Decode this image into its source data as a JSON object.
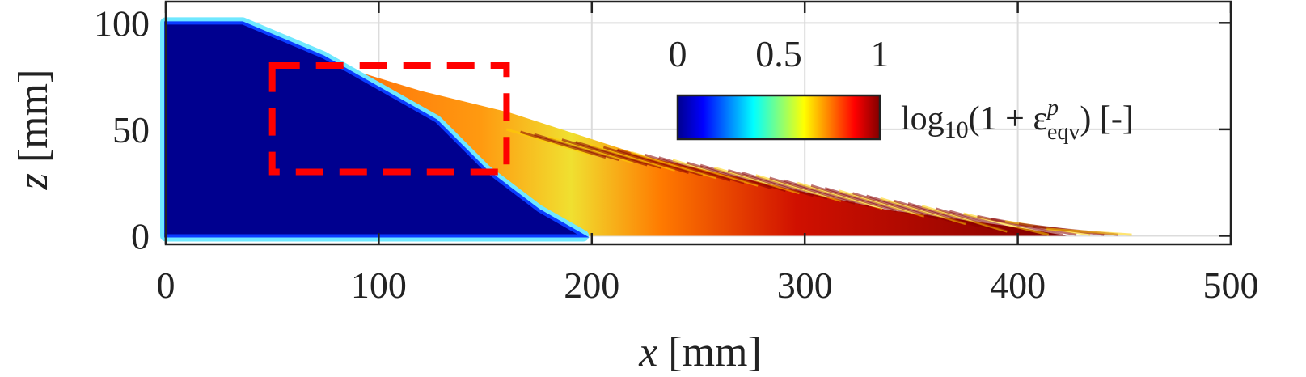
{
  "chart_data": {
    "type": "heatmap",
    "xlabel": "x [mm]",
    "xlabel_var": "x",
    "xlabel_unit": "[mm]",
    "ylabel": "z [mm]",
    "ylabel_var": "z",
    "ylabel_unit": "[mm]",
    "xlim": [
      0,
      500
    ],
    "ylim": [
      -4,
      110
    ],
    "xticks": [
      0,
      100,
      200,
      300,
      400,
      500
    ],
    "xtick_labels": [
      "0",
      "100",
      "200",
      "300",
      "400",
      "500"
    ],
    "yticks": [
      0,
      50,
      100
    ],
    "ytick_labels": [
      "0",
      "50",
      "100"
    ],
    "grid": true,
    "surface_profile": [
      [
        0,
        100
      ],
      [
        30,
        100
      ],
      [
        74,
        82
      ],
      [
        120,
        68
      ],
      [
        161,
        58
      ],
      [
        226,
        37
      ],
      [
        302,
        20
      ],
      [
        340,
        12
      ],
      [
        400,
        4
      ],
      [
        423,
        0
      ],
      [
        0,
        0
      ]
    ],
    "static_zone_boundary": [
      [
        0,
        100
      ],
      [
        36,
        100
      ],
      [
        74,
        84
      ],
      [
        127,
        54
      ],
      [
        150,
        31
      ],
      [
        175,
        12
      ],
      [
        196,
        0
      ],
      [
        0,
        0
      ]
    ],
    "colorbar": {
      "label_main": "log",
      "label_sub": "10",
      "label_rest": "(1 + ε",
      "label_sup": "p",
      "label_sub2": "eqv",
      "label_end": ") [-]",
      "ticks": [
        0,
        0.5,
        1
      ],
      "tick_labels": [
        "0",
        "0.5",
        "1"
      ],
      "range": [
        0,
        1
      ],
      "colormap": "jet",
      "placement": "top-right"
    },
    "annotation_box": {
      "x": [
        50,
        160
      ],
      "z": [
        30,
        80
      ],
      "color": "#ff0000",
      "style": "dashed"
    },
    "colors": {
      "static": "#00008f",
      "flow": "#c00000",
      "box": "#ff0000"
    }
  }
}
